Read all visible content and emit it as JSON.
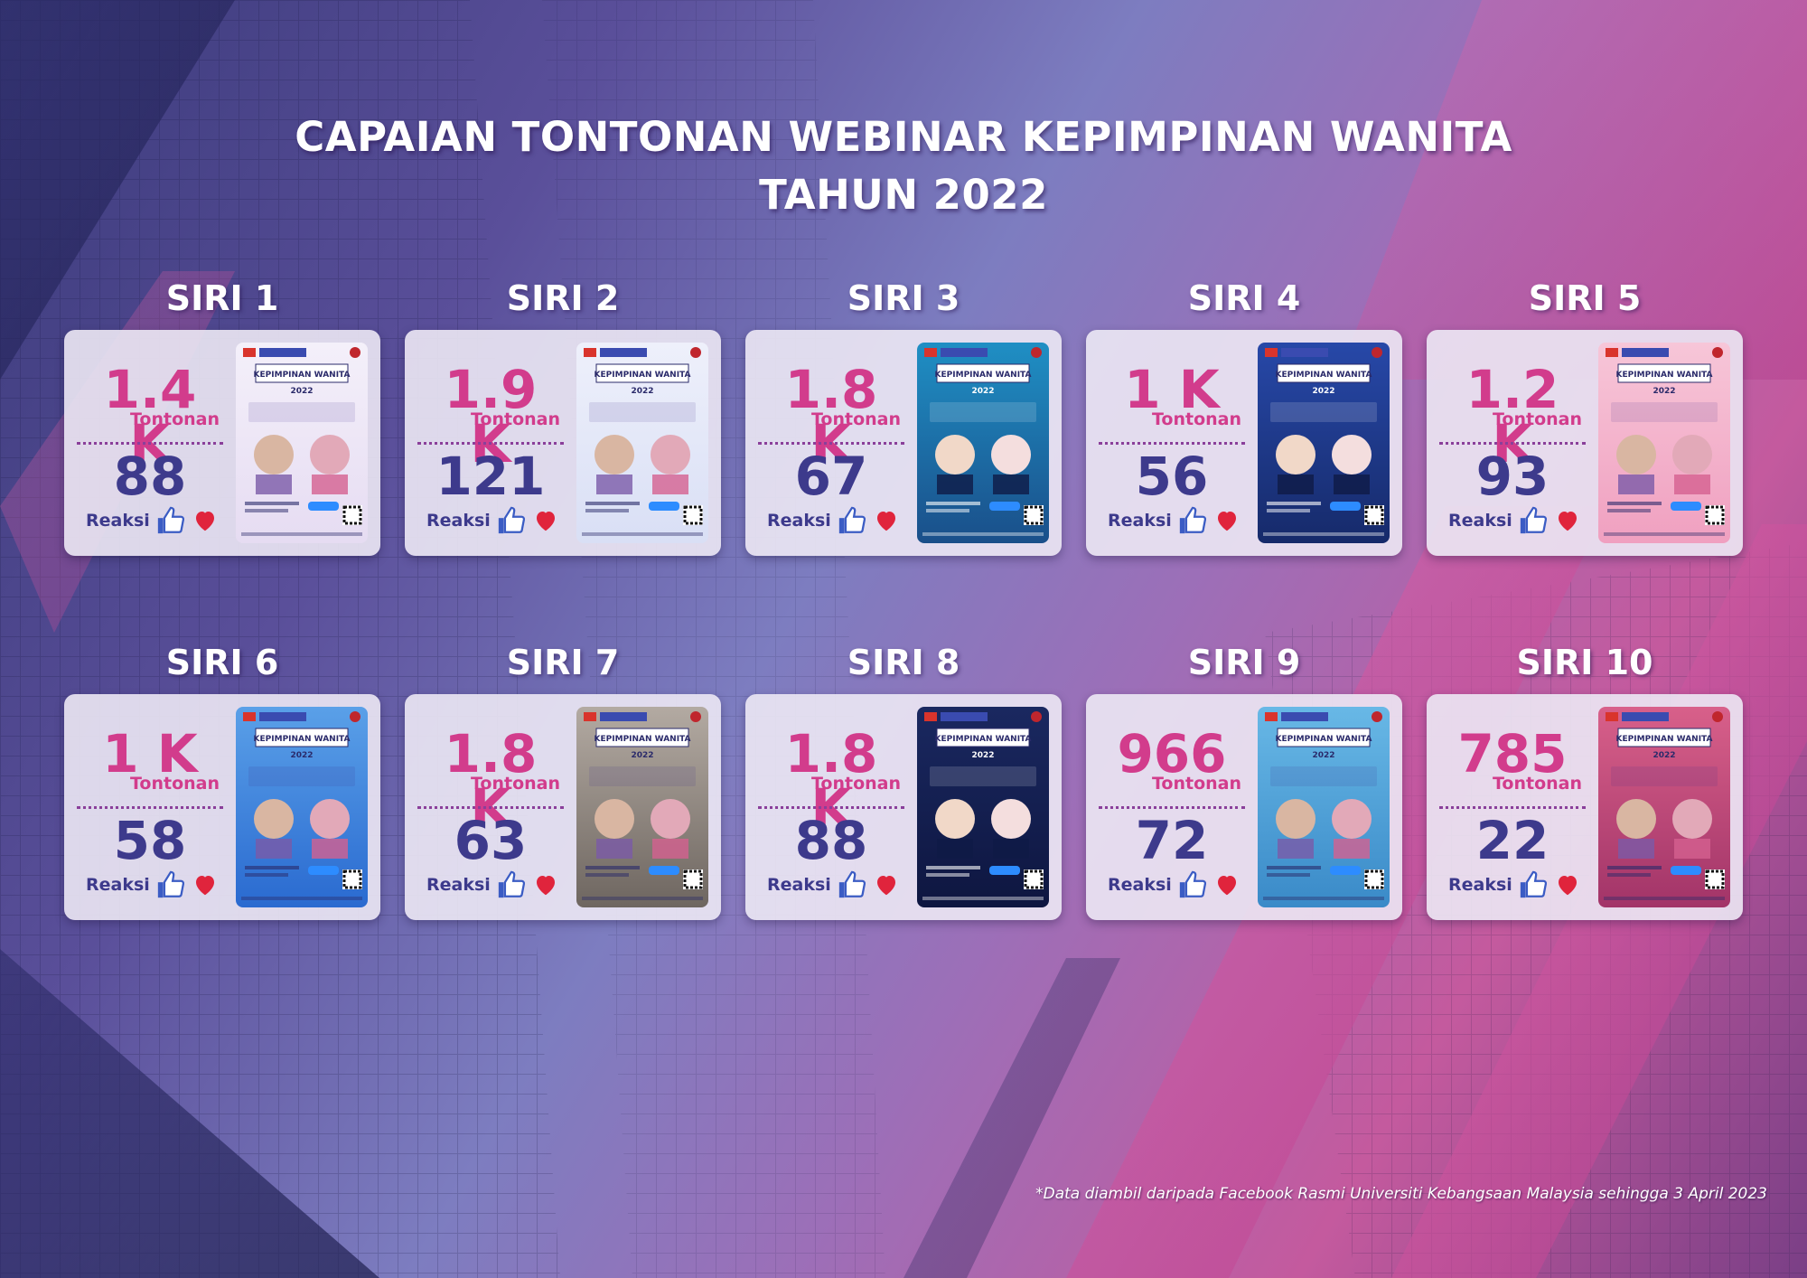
{
  "title": {
    "line1": "CAPAIAN TONTONAN WEBINAR KEPIMPINAN WANITA",
    "line2": "TAHUN 2022"
  },
  "series": [
    {
      "label": "SIRI 1",
      "views": "1.4 K",
      "views_label": "Tontonan",
      "reactions": "88",
      "reactions_label": "Reaksi",
      "poster_title": "KEPIMPINAN WANITA 2022",
      "poster_colors": [
        "#f4f0fa",
        "#e6dcf2"
      ]
    },
    {
      "label": "SIRI 2",
      "views": "1.9 K",
      "views_label": "Tontonan",
      "reactions": "121",
      "reactions_label": "Reaksi",
      "poster_title": "KEPIMPINAN WANITA 2022",
      "poster_colors": [
        "#eef0fb",
        "#d9dff5"
      ]
    },
    {
      "label": "SIRI 3",
      "views": "1.8 K",
      "views_label": "Tontonan",
      "reactions": "67",
      "reactions_label": "Reaksi",
      "poster_title": "KEPIMPINAN WANITA 2022",
      "poster_colors": [
        "#1f8fc4",
        "#1a4f8a"
      ]
    },
    {
      "label": "SIRI 4",
      "views": "1 K",
      "views_label": "Tontonan",
      "reactions": "56",
      "reactions_label": "Reaksi",
      "poster_title": "KEPIMPINAN WANITA 2022",
      "poster_colors": [
        "#2748a8",
        "#162a6a"
      ]
    },
    {
      "label": "SIRI 5",
      "views": "1.2 K",
      "views_label": "Tontonan",
      "reactions": "93",
      "reactions_label": "Reaksi",
      "poster_title": "KEPIMPINAN WANITA 2022",
      "poster_colors": [
        "#f7c6d8",
        "#f0a0c0"
      ]
    },
    {
      "label": "SIRI 6",
      "views": "1 K",
      "views_label": "Tontonan",
      "reactions": "58",
      "reactions_label": "Reaksi",
      "poster_title": "KEPIMPINAN WANITA 2022",
      "poster_colors": [
        "#5aa0e8",
        "#2a6ad0"
      ]
    },
    {
      "label": "SIRI 7",
      "views": "1.8 K",
      "views_label": "Tontonan",
      "reactions": "63",
      "reactions_label": "Reaksi",
      "poster_title": "KEPIMPINAN WANITA 2022",
      "poster_colors": [
        "#b3aaa2",
        "#6e6660"
      ]
    },
    {
      "label": "SIRI 8",
      "views": "1.8 K",
      "views_label": "Tontonan",
      "reactions": "88",
      "reactions_label": "Reaksi",
      "poster_title": "KEPIMPINAN WANITA 2022",
      "poster_colors": [
        "#1a2860",
        "#0e1640"
      ]
    },
    {
      "label": "SIRI 9",
      "views": "966",
      "views_label": "Tontonan",
      "reactions": "72",
      "reactions_label": "Reaksi",
      "poster_title": "KEPIMPINAN WANITA 2022",
      "poster_colors": [
        "#68b8e6",
        "#3a8ac8"
      ]
    },
    {
      "label": "SIRI 10",
      "views": "785",
      "views_label": "Tontonan",
      "reactions": "22",
      "reactions_label": "Reaksi",
      "poster_title": "KEPIMPINAN WANITA 2022",
      "poster_colors": [
        "#d8608a",
        "#a23468"
      ]
    }
  ],
  "footnote": "*Data diambil daripada Facebook Rasmi Universiti Kebangsaan Malaysia sehingga 3 April 2023",
  "colors": {
    "views_pink": "#d23c8c",
    "reactions_navy": "#3d3a8c",
    "like_blue": "#3b5cc4",
    "heart_red": "#e0243c"
  }
}
